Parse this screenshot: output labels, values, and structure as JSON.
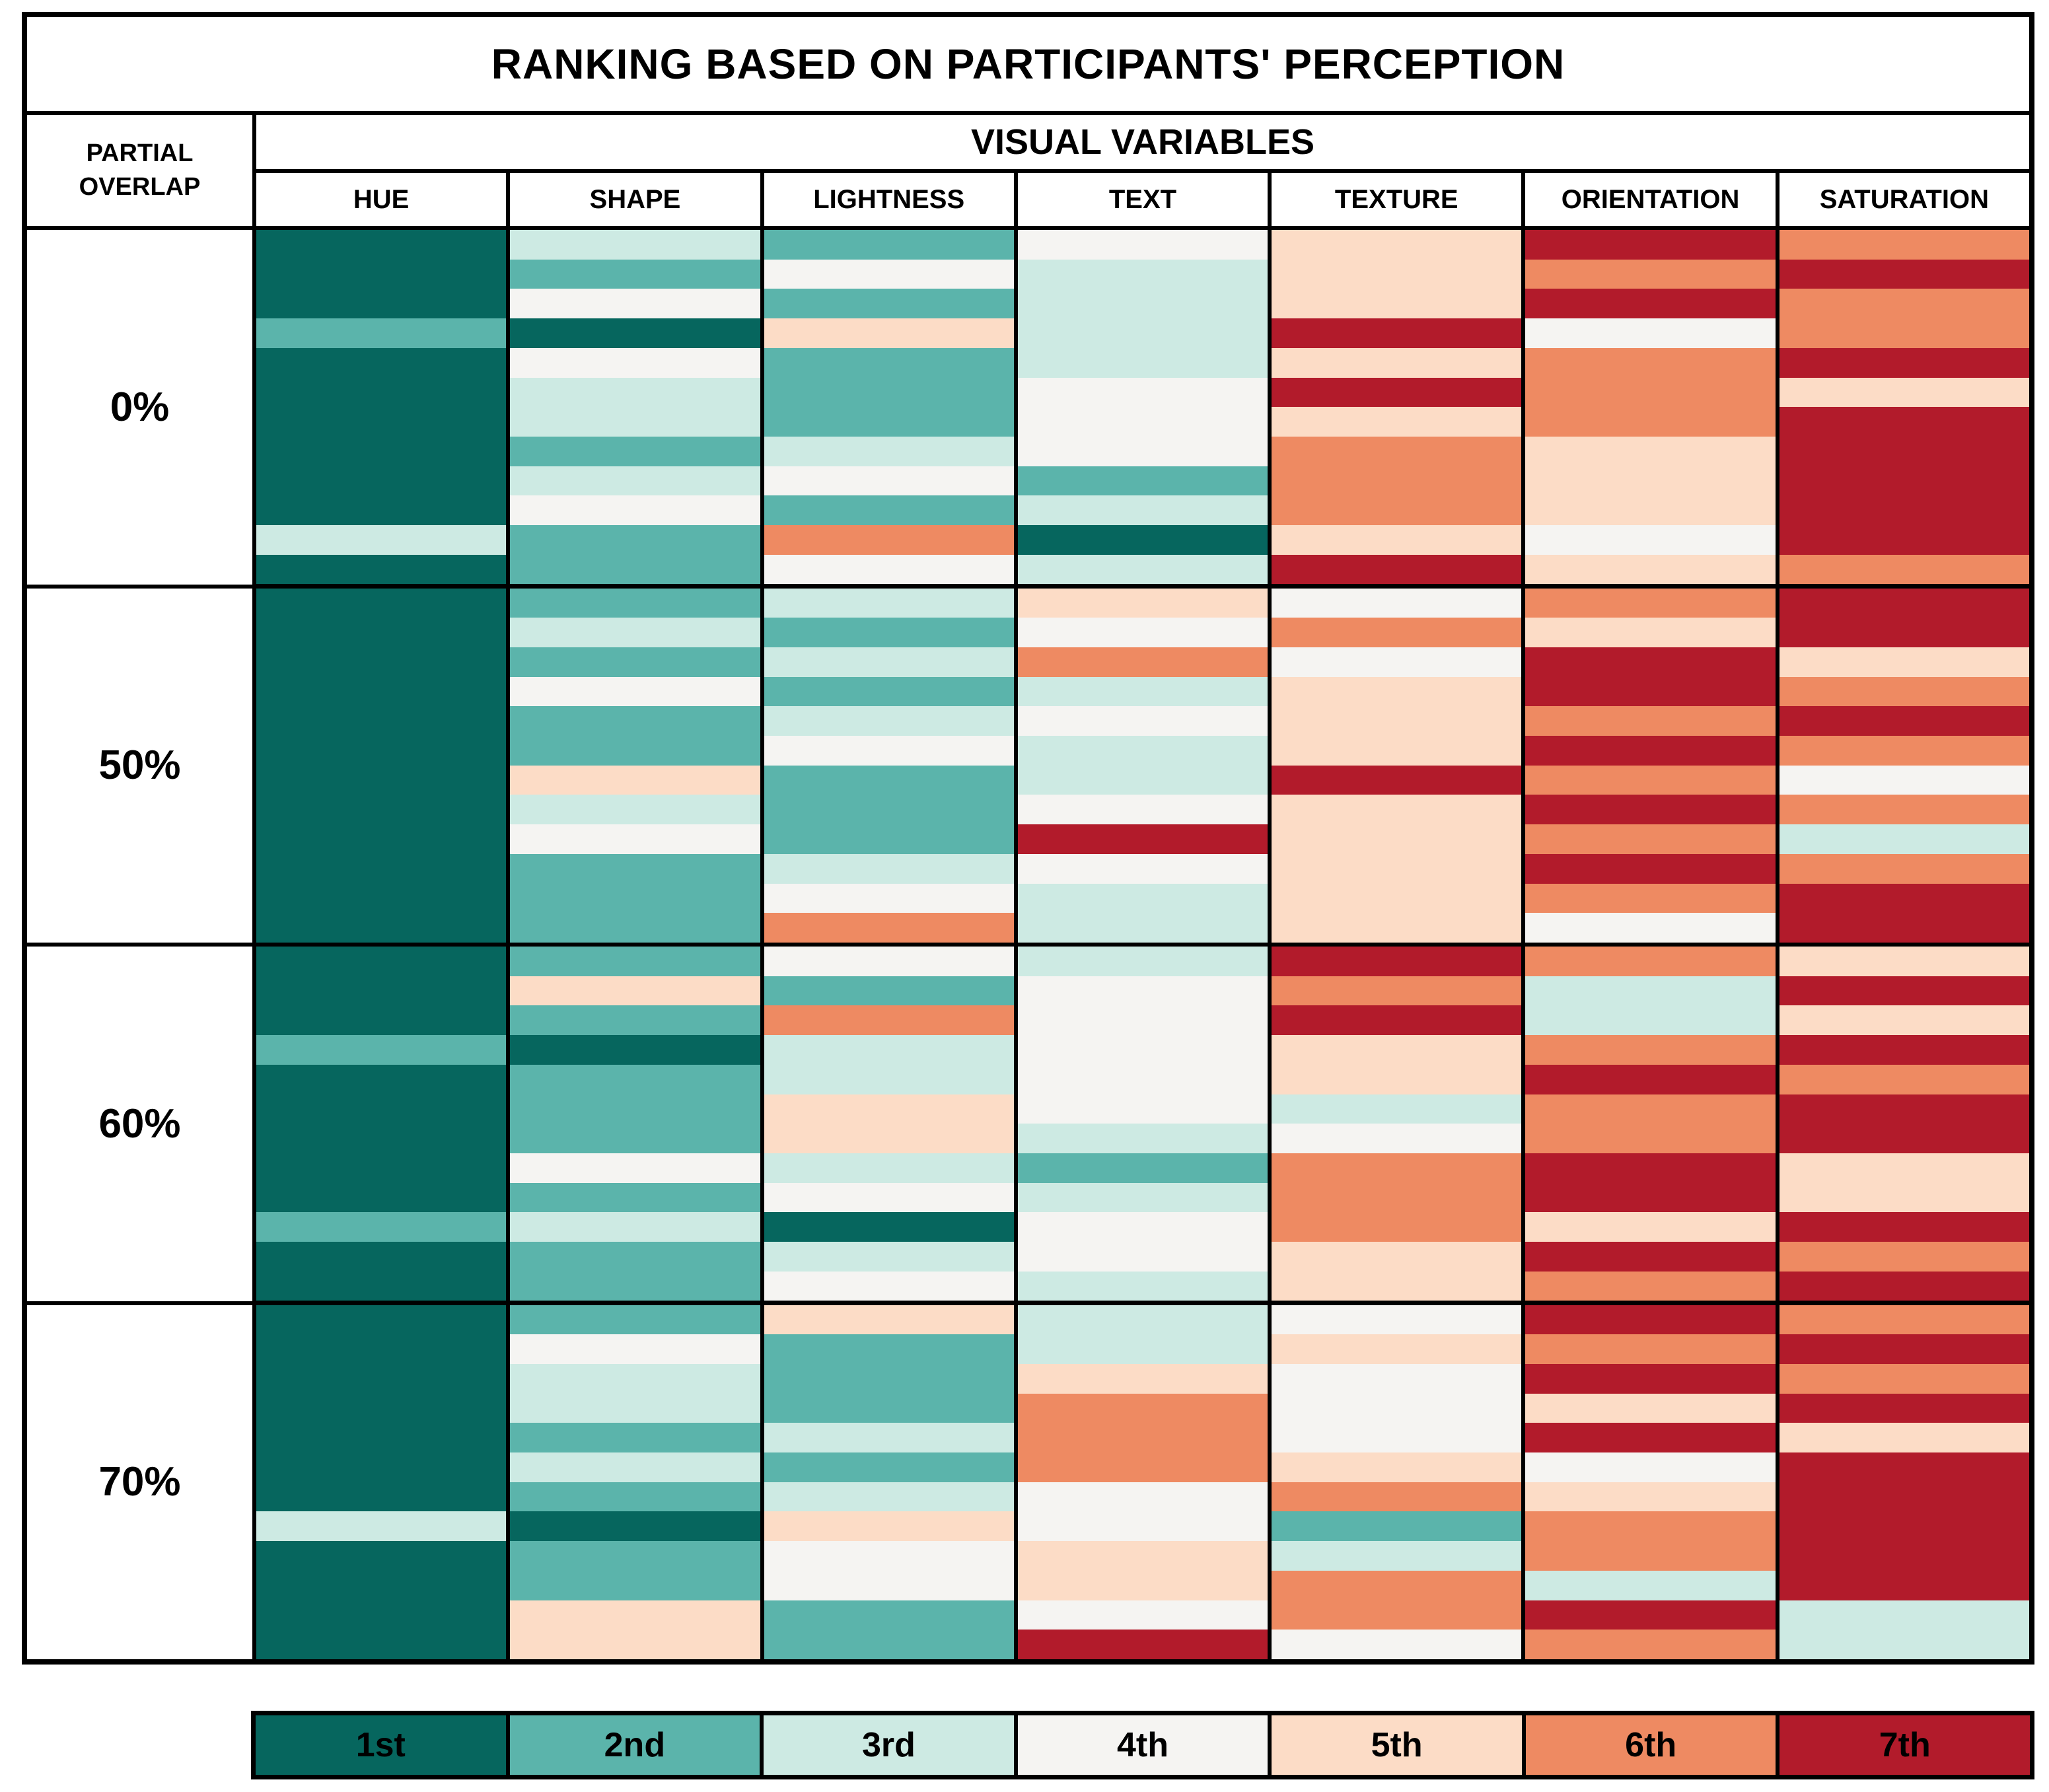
{
  "title": "RANKING BASED ON PARTICIPANTS' PERCEPTION",
  "header": {
    "row_axis_label": "PARTIAL OVERLAP",
    "column_group_label": "VISUAL VARIABLES"
  },
  "legend": [
    {
      "label": "1st",
      "rank": 1
    },
    {
      "label": "2nd",
      "rank": 2
    },
    {
      "label": "3rd",
      "rank": 3
    },
    {
      "label": "4th",
      "rank": 4
    },
    {
      "label": "5th",
      "rank": 5
    },
    {
      "label": "6th",
      "rank": 6
    },
    {
      "label": "7th",
      "rank": 7
    }
  ],
  "chart_data": {
    "type": "heatmap",
    "title": "RANKING BASED ON PARTICIPANTS' PERCEPTION",
    "xlabel": "VISUAL VARIABLES",
    "ylabel": "PARTIAL OVERLAP",
    "legend_position": "bottom",
    "rank_scale_labels": [
      "1st",
      "2nd",
      "3rd",
      "4th",
      "5th",
      "6th",
      "7th"
    ],
    "rank_colors": {
      "1": "#06665E",
      "2": "#5BB4AB",
      "3": "#CDEAE3",
      "4": "#F5F4F2",
      "5": "#FCDCC6",
      "6": "#EE8A62",
      "7": "#B21B2B"
    },
    "columns": [
      "HUE",
      "SHAPE",
      "LIGHTNESS",
      "TEXT",
      "TEXTURE",
      "ORIENTATION",
      "SATURATION"
    ],
    "stripes_per_cell": 12,
    "groups": [
      {
        "overlap": "0%",
        "ranks": {
          "HUE": [
            1,
            1,
            1,
            2,
            1,
            1,
            1,
            1,
            1,
            1,
            3,
            1
          ],
          "SHAPE": [
            3,
            2,
            4,
            1,
            4,
            3,
            3,
            2,
            3,
            4,
            2,
            2
          ],
          "LIGHTNESS": [
            2,
            4,
            2,
            5,
            2,
            2,
            2,
            3,
            4,
            2,
            6,
            4
          ],
          "TEXT": [
            4,
            3,
            3,
            3,
            3,
            4,
            4,
            4,
            2,
            3,
            1,
            3
          ],
          "TEXTURE": [
            5,
            5,
            5,
            7,
            5,
            7,
            5,
            6,
            6,
            6,
            5,
            7
          ],
          "ORIENTATION": [
            7,
            6,
            7,
            4,
            6,
            6,
            6,
            5,
            5,
            5,
            4,
            5
          ],
          "SATURATION": [
            6,
            7,
            6,
            6,
            7,
            5,
            7,
            7,
            7,
            7,
            7,
            6
          ]
        }
      },
      {
        "overlap": "50%",
        "ranks": {
          "HUE": [
            1,
            1,
            1,
            1,
            1,
            1,
            1,
            1,
            1,
            1,
            1,
            1
          ],
          "SHAPE": [
            2,
            3,
            2,
            4,
            2,
            2,
            5,
            3,
            4,
            2,
            2,
            2
          ],
          "LIGHTNESS": [
            3,
            2,
            3,
            2,
            3,
            4,
            2,
            2,
            2,
            3,
            4,
            6
          ],
          "TEXT": [
            5,
            4,
            6,
            3,
            4,
            3,
            3,
            4,
            7,
            4,
            3,
            3
          ],
          "TEXTURE": [
            4,
            6,
            4,
            5,
            5,
            5,
            7,
            5,
            5,
            5,
            5,
            5
          ],
          "ORIENTATION": [
            6,
            5,
            7,
            7,
            6,
            7,
            6,
            7,
            6,
            7,
            6,
            4
          ],
          "SATURATION": [
            7,
            7,
            5,
            6,
            7,
            6,
            4,
            6,
            3,
            6,
            7,
            7
          ]
        }
      },
      {
        "overlap": "60%",
        "ranks": {
          "HUE": [
            1,
            1,
            1,
            2,
            1,
            1,
            1,
            1,
            1,
            2,
            1,
            1
          ],
          "SHAPE": [
            2,
            5,
            2,
            1,
            2,
            2,
            2,
            4,
            2,
            3,
            2,
            2
          ],
          "LIGHTNESS": [
            4,
            2,
            6,
            3,
            3,
            5,
            5,
            3,
            4,
            1,
            3,
            4
          ],
          "TEXT": [
            3,
            4,
            4,
            4,
            4,
            4,
            3,
            2,
            3,
            4,
            4,
            3
          ],
          "TEXTURE": [
            7,
            6,
            7,
            5,
            5,
            3,
            4,
            6,
            6,
            6,
            5,
            5
          ],
          "ORIENTATION": [
            6,
            3,
            3,
            6,
            7,
            6,
            6,
            7,
            7,
            5,
            7,
            6
          ],
          "SATURATION": [
            5,
            7,
            5,
            7,
            6,
            7,
            7,
            5,
            5,
            7,
            6,
            7
          ]
        }
      },
      {
        "overlap": "70%",
        "ranks": {
          "HUE": [
            1,
            1,
            1,
            1,
            1,
            1,
            1,
            3,
            1,
            1,
            1,
            1
          ],
          "SHAPE": [
            2,
            4,
            3,
            3,
            2,
            3,
            2,
            1,
            2,
            2,
            5,
            5
          ],
          "LIGHTNESS": [
            5,
            2,
            2,
            2,
            3,
            2,
            3,
            5,
            4,
            4,
            2,
            2
          ],
          "TEXT": [
            3,
            3,
            5,
            6,
            6,
            6,
            4,
            4,
            5,
            5,
            4,
            7
          ],
          "TEXTURE": [
            4,
            5,
            4,
            4,
            4,
            5,
            6,
            2,
            3,
            6,
            6,
            4
          ],
          "ORIENTATION": [
            7,
            6,
            7,
            5,
            7,
            4,
            5,
            6,
            6,
            3,
            7,
            6
          ],
          "SATURATION": [
            6,
            7,
            6,
            7,
            5,
            7,
            7,
            7,
            7,
            7,
            3,
            3
          ]
        }
      }
    ]
  }
}
